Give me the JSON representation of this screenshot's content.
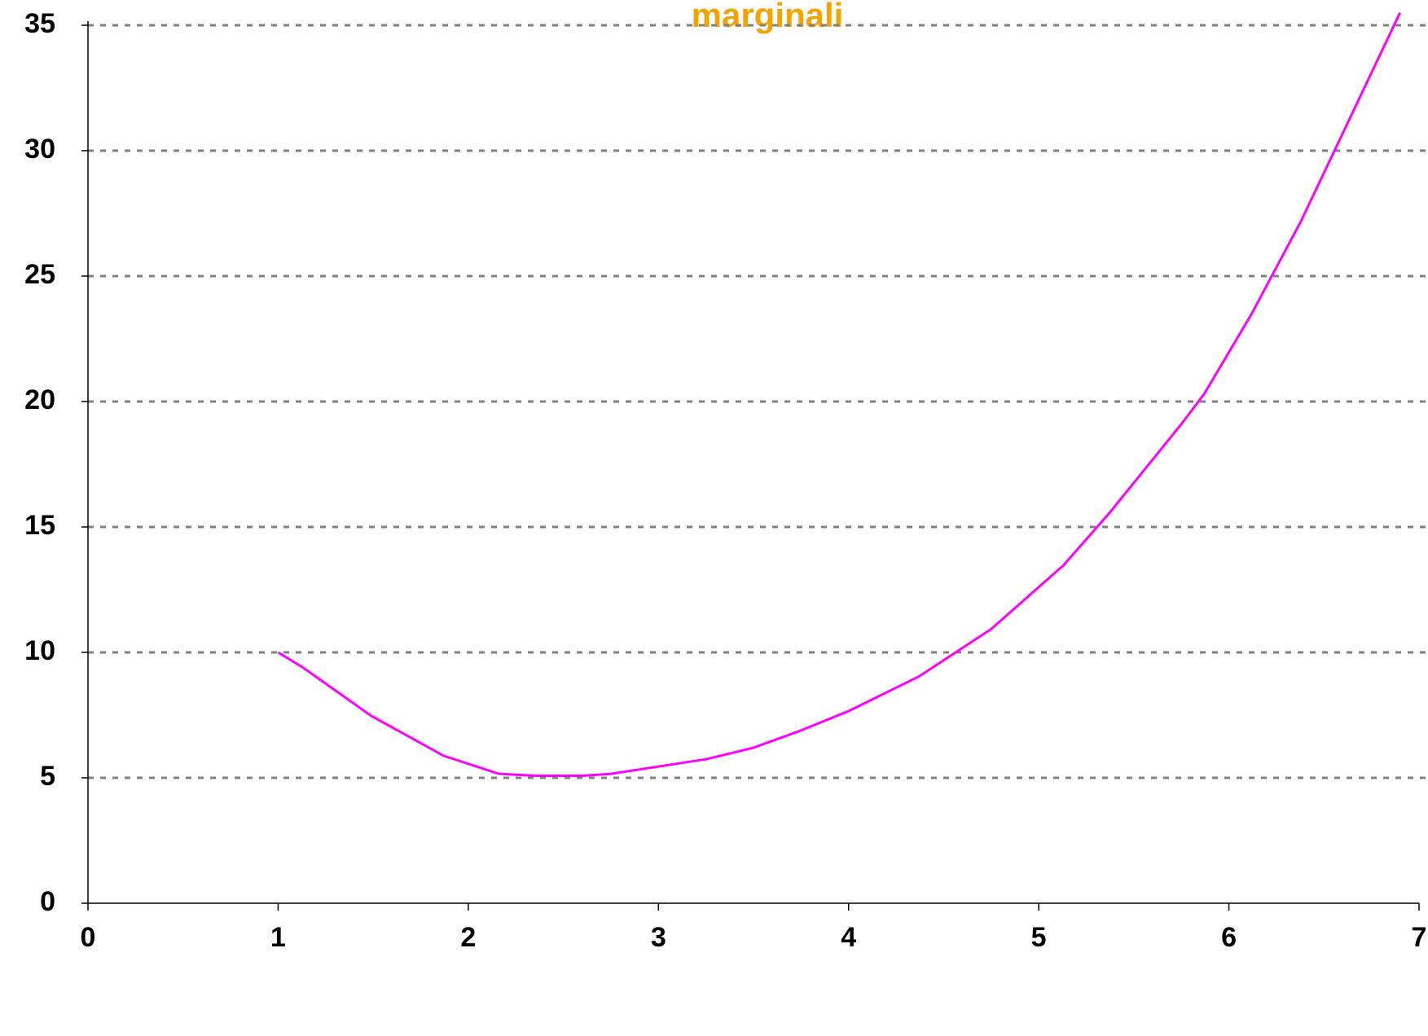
{
  "chart_data": {
    "type": "line",
    "title": "marginali",
    "x": [
      1,
      1.13,
      1.49,
      1.87,
      2.16,
      2.36,
      2.6,
      2.75,
      3.25,
      3.5,
      3.74,
      4,
      4.37,
      4.75,
      5.13,
      5.37,
      5.75,
      5.87,
      6.12,
      6.38,
      6.9
    ],
    "series": [
      {
        "name": "marginali",
        "color": "#ff00ff",
        "values": [
          10,
          9.4,
          7.47,
          5.88,
          5.16,
          5.08,
          5.08,
          5.16,
          5.74,
          6.2,
          6.86,
          7.66,
          9.04,
          10.93,
          13.47,
          15.54,
          19.1,
          20.3,
          23.5,
          27.2,
          35.5
        ]
      }
    ],
    "xlim": [
      0,
      7
    ],
    "xticks": [
      0,
      1,
      2,
      3,
      4,
      5,
      6,
      7
    ],
    "ylim": [
      0,
      35
    ],
    "yticks": [
      0,
      5,
      10,
      15,
      20,
      25,
      30,
      35
    ],
    "grid": true
  }
}
